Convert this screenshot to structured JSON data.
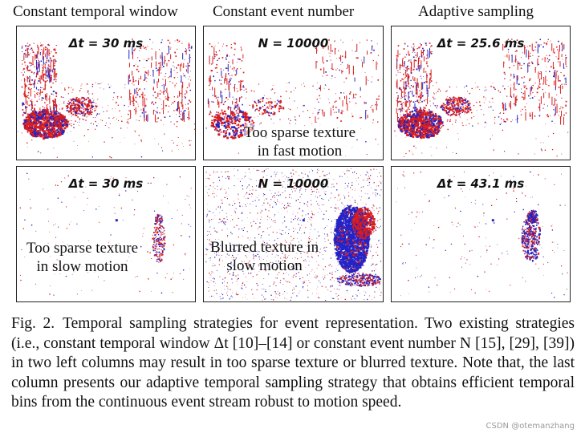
{
  "columns": [
    {
      "heading": "Constant temporal window"
    },
    {
      "heading": "Constant event number"
    },
    {
      "heading": "Adaptive sampling"
    }
  ],
  "panels": {
    "r1c1": {
      "param": "Δt = 30 ms"
    },
    "r1c2": {
      "param": "N = 10000",
      "note_line1": "Too sparse texture",
      "note_line2": "in fast motion"
    },
    "r1c3": {
      "param": "Δt = 25.6 ms"
    },
    "r2c1": {
      "param": "Δt = 30 ms",
      "note_line1": "Too sparse texture",
      "note_line2": "in slow motion"
    },
    "r2c2": {
      "param": "N = 10000",
      "note_line1": "Blurred texture in",
      "note_line2": "slow motion"
    },
    "r2c3": {
      "param": "Δt = 43.1 ms"
    }
  },
  "caption": {
    "label": "Fig. 2.",
    "text": "Temporal sampling strategies for event representation. Two existing strategies (i.e., constant temporal window Δt [10]–[14] or constant event number N [15], [29], [39]) in two left columns may result in too sparse texture or blurred texture. Note that, the last column presents our adaptive temporal sampling strategy that obtains efficient temporal bins from the continuous event stream robust to motion speed."
  },
  "watermark": "CSDN @otemanzhang",
  "colors": {
    "positive_event": "#d91c1c",
    "negative_event": "#2323c8"
  }
}
